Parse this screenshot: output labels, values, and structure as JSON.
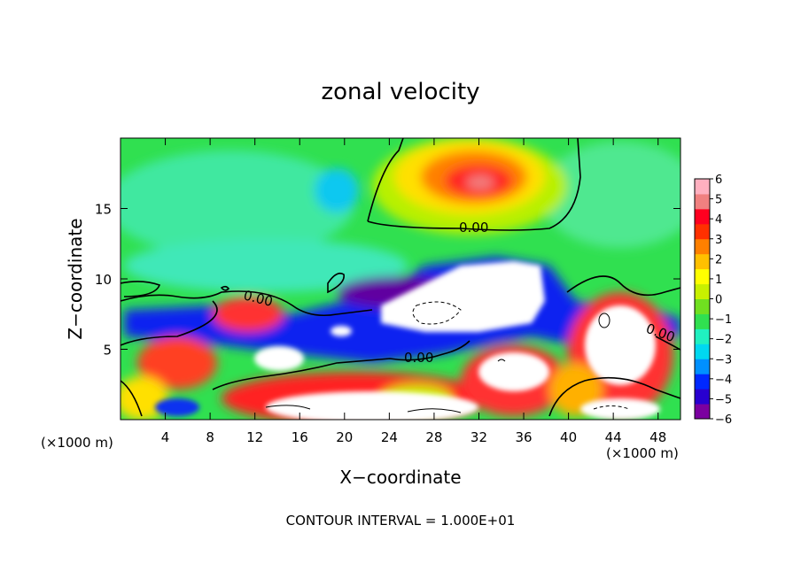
{
  "chart_data": {
    "type": "heatmap",
    "title": "zonal velocity",
    "xlabel": "X−coordinate",
    "ylabel": "Z−coordinate",
    "x_unit_label": "(×1000 m)",
    "z_unit_label": "(×1000 m)",
    "xlim": [
      0,
      50
    ],
    "ylim": [
      0,
      20
    ],
    "x_ticks": [
      "4",
      "8",
      "12",
      "16",
      "20",
      "24",
      "28",
      "32",
      "36",
      "40",
      "44",
      "48"
    ],
    "y_ticks": [
      "5",
      "10",
      "15"
    ],
    "colorbar": {
      "ticks": [
        "6",
        "5",
        "4",
        "3",
        "2",
        "1",
        "0",
        "−1",
        "−2",
        "−3",
        "−4",
        "−5",
        "−6"
      ],
      "range": [
        -6,
        6
      ],
      "colors": [
        "#7b00a0",
        "#2800d0",
        "#0028ff",
        "#0090ff",
        "#00d8f0",
        "#20f0c0",
        "#30e050",
        "#70e020",
        "#c8f000",
        "#ffff00",
        "#ffc000",
        "#ff8000",
        "#ff3000",
        "#ff0020",
        "#f08080",
        "#ffb0c0"
      ]
    },
    "contour_labels": [
      "0.00",
      "0.00",
      "0.00",
      "0.00"
    ],
    "footer": "CONTOUR INTERVAL = 1.000E+01"
  }
}
